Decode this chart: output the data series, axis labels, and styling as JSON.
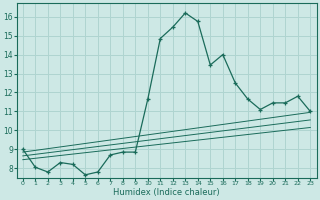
{
  "xlabel": "Humidex (Indice chaleur)",
  "background_color": "#cde8e5",
  "grid_color": "#afd4d0",
  "line_color": "#1a6b5a",
  "xlim": [
    -0.5,
    23.5
  ],
  "ylim": [
    7.5,
    16.7
  ],
  "yticks": [
    8,
    9,
    10,
    11,
    12,
    13,
    14,
    15,
    16
  ],
  "xticks": [
    0,
    1,
    2,
    3,
    4,
    5,
    6,
    7,
    8,
    9,
    10,
    11,
    12,
    13,
    14,
    15,
    16,
    17,
    18,
    19,
    20,
    21,
    22,
    23
  ],
  "main_x": [
    0,
    1,
    2,
    3,
    4,
    5,
    6,
    7,
    8,
    9,
    10,
    11,
    12,
    13,
    14,
    15,
    16,
    17,
    18,
    19,
    20,
    21,
    22,
    23
  ],
  "main_y": [
    9.0,
    8.05,
    7.8,
    8.3,
    8.2,
    7.65,
    7.8,
    8.7,
    8.85,
    8.85,
    11.65,
    14.85,
    15.45,
    16.2,
    15.75,
    13.45,
    14.0,
    12.5,
    11.65,
    11.1,
    11.45,
    11.45,
    11.8,
    11.0
  ],
  "ref_line1_x": [
    0,
    23
  ],
  "ref_line1_y": [
    8.45,
    10.15
  ],
  "ref_line2_x": [
    0,
    23
  ],
  "ref_line2_y": [
    8.65,
    10.55
  ],
  "ref_line3_x": [
    0,
    23
  ],
  "ref_line3_y": [
    8.85,
    10.95
  ]
}
